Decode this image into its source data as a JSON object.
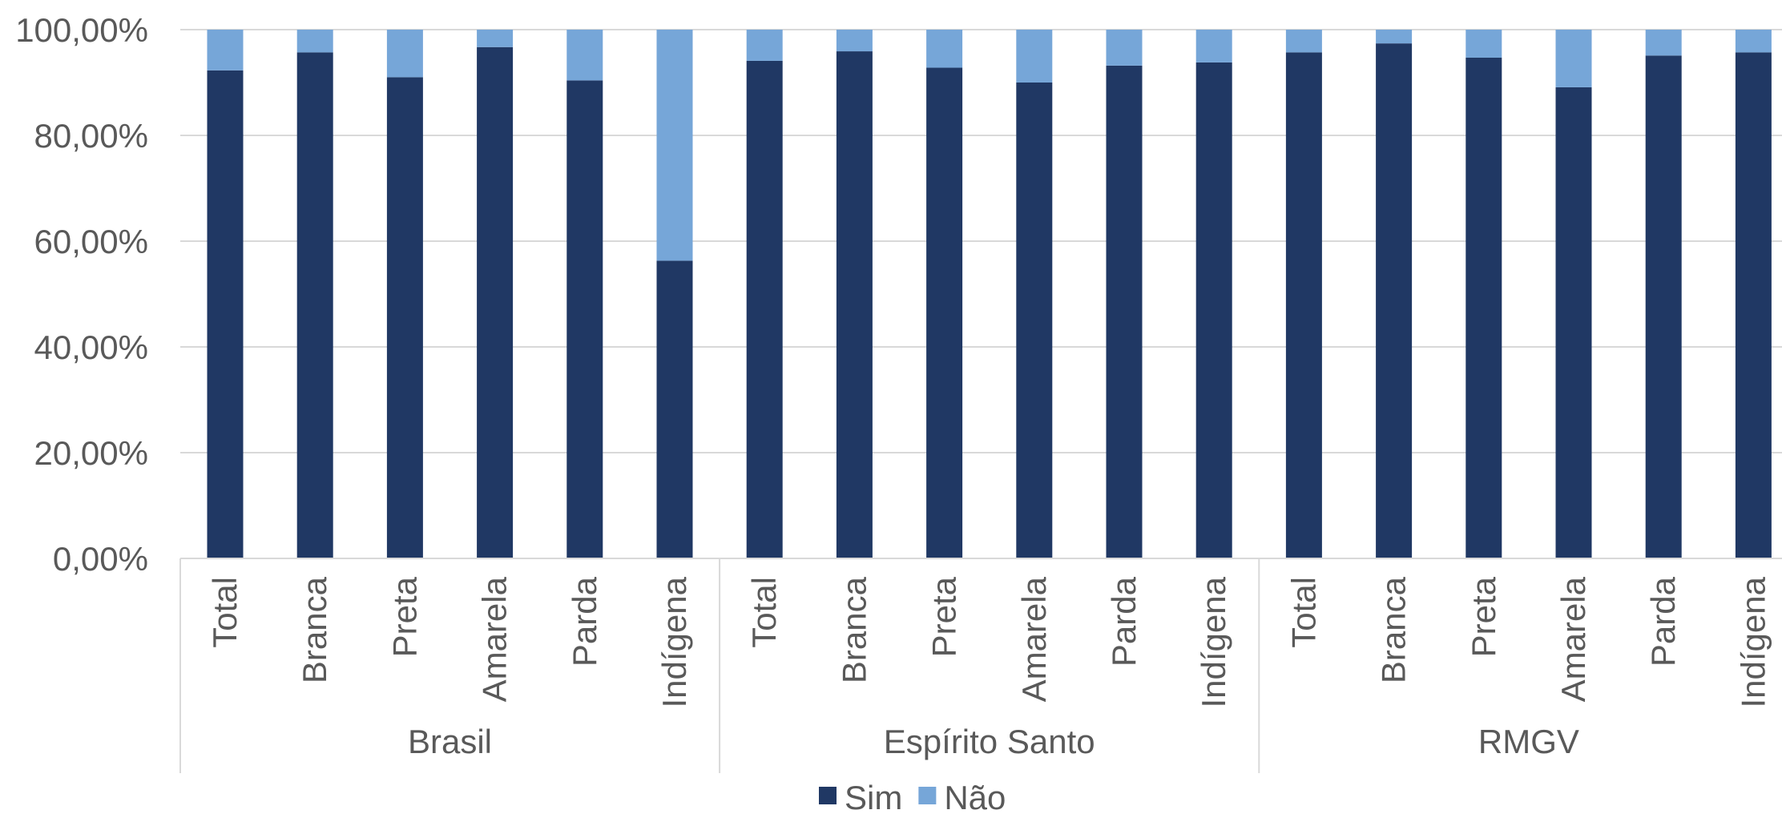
{
  "chart_data": {
    "type": "bar",
    "stacked": true,
    "title": "",
    "xlabel": "",
    "ylabel": "",
    "ylim": [
      0,
      100
    ],
    "y_ticks": [
      "0,00%",
      "20,00%",
      "40,00%",
      "60,00%",
      "80,00%",
      "100,00%"
    ],
    "grid": true,
    "legend": "bottom",
    "groups": [
      {
        "name": "Brasil",
        "categories": [
          "Total",
          "Branca",
          "Preta",
          "Amarela",
          "Parda",
          "Indígena"
        ]
      },
      {
        "name": "Espírito Santo",
        "categories": [
          "Total",
          "Branca",
          "Preta",
          "Amarela",
          "Parda",
          "Indígena"
        ]
      },
      {
        "name": "RMGV",
        "categories": [
          "Total",
          "Branca",
          "Preta",
          "Amarela",
          "Parda",
          "Indígena"
        ]
      }
    ],
    "series": [
      {
        "name": "Sim",
        "color": "#203864",
        "values": [
          92.3,
          95.7,
          91.0,
          96.7,
          90.4,
          56.3,
          94.1,
          95.9,
          92.8,
          90.0,
          93.2,
          93.8,
          95.7,
          97.4,
          94.7,
          89.1,
          95.1,
          95.7
        ]
      },
      {
        "name": "Não",
        "color": "#76a6d8",
        "values": [
          7.7,
          4.3,
          9.0,
          3.3,
          9.6,
          43.7,
          5.9,
          4.1,
          7.2,
          10.0,
          6.8,
          6.2,
          4.3,
          2.6,
          5.3,
          10.9,
          4.9,
          4.3
        ]
      }
    ],
    "gridline_color": "#d9d9d9",
    "axis_color": "#d9d9d9",
    "text_color": "#595959"
  }
}
